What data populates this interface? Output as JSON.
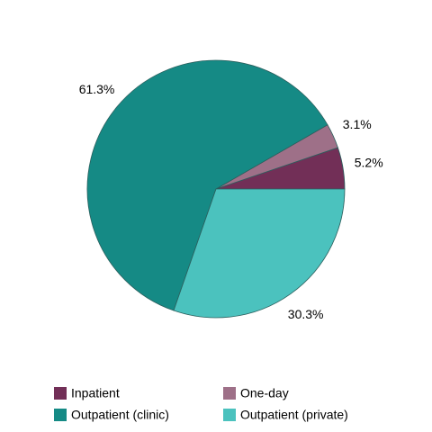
{
  "chart_data": {
    "type": "pie",
    "categories": [
      "Inpatient",
      "One-day",
      "Outpatient (clinic)",
      "Outpatient (private)"
    ],
    "values": [
      5.2,
      3.1,
      61.3,
      30.3
    ],
    "value_labels": [
      "5.2%",
      "3.1%",
      "61.3%",
      "30.3%"
    ],
    "colors": [
      "#722f57",
      "#9e7088",
      "#158a85",
      "#4bc2be"
    ],
    "legend": "bottom"
  }
}
